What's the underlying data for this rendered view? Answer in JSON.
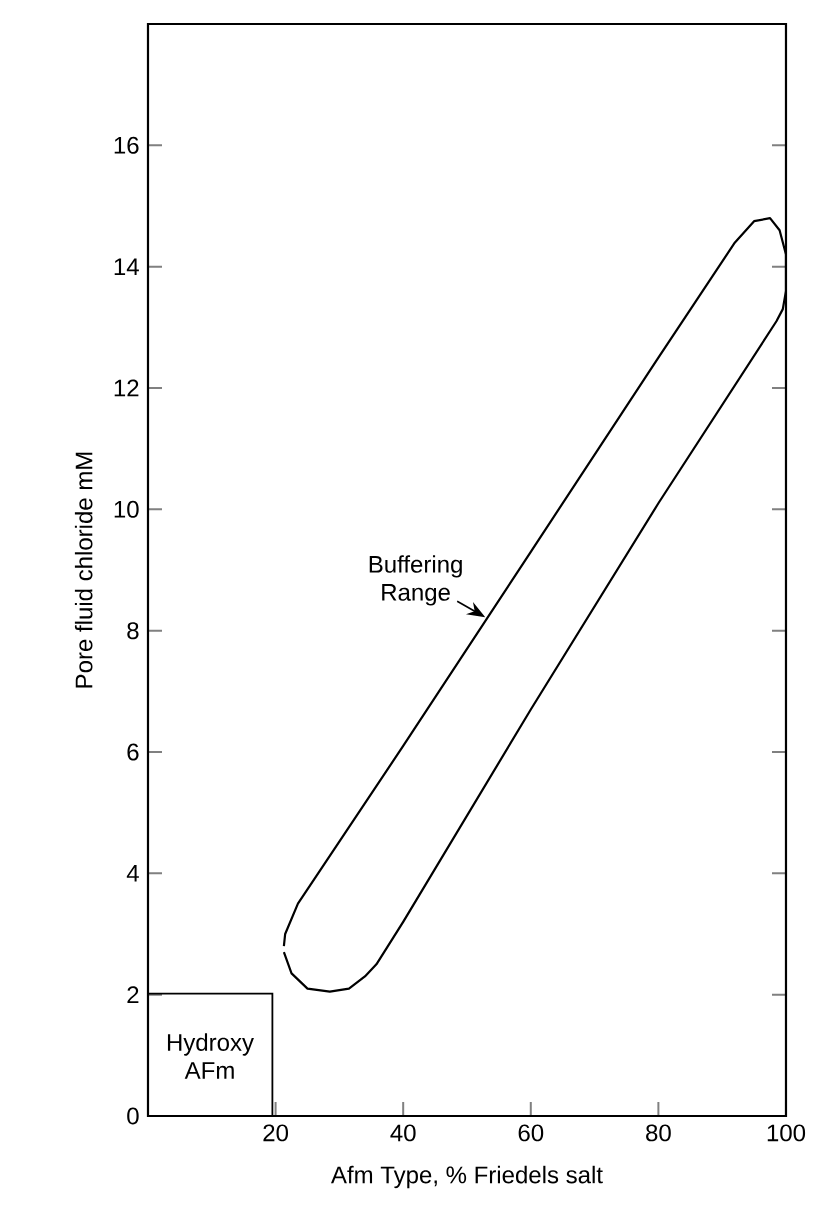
{
  "chart_data": {
    "type": "line",
    "xlabel": "Afm Type, % Friedels salt",
    "ylabel": "Pore fluid chloride mM",
    "xlim": [
      0,
      100
    ],
    "ylim": [
      0,
      18
    ],
    "xticks": [
      20,
      40,
      60,
      80,
      100
    ],
    "yticks": [
      0,
      2,
      4,
      6,
      8,
      10,
      12,
      14,
      16
    ],
    "grid": false,
    "marker": "none",
    "line_style": "solid",
    "series": [
      {
        "color": "#000000",
        "x": [
          21.3,
          21.5,
          23.5,
          40,
          60,
          80,
          92,
          95,
          97.5,
          99,
          100,
          100,
          99.5,
          98.5,
          80,
          60,
          40,
          35.8,
          34,
          31.5,
          28.5,
          25,
          22.5,
          21.3
        ],
        "values": [
          2.8,
          3.0,
          3.5,
          6.1,
          9.3,
          12.5,
          14.4,
          14.75,
          14.8,
          14.6,
          14.2,
          13.6,
          13.3,
          13.1,
          10.1,
          6.7,
          3.2,
          2.5,
          2.3,
          2.1,
          2.05,
          2.1,
          2.35,
          2.7
        ]
      }
    ],
    "annotations": [
      "Buffering Range",
      "Hydroxy AFm"
    ]
  }
}
